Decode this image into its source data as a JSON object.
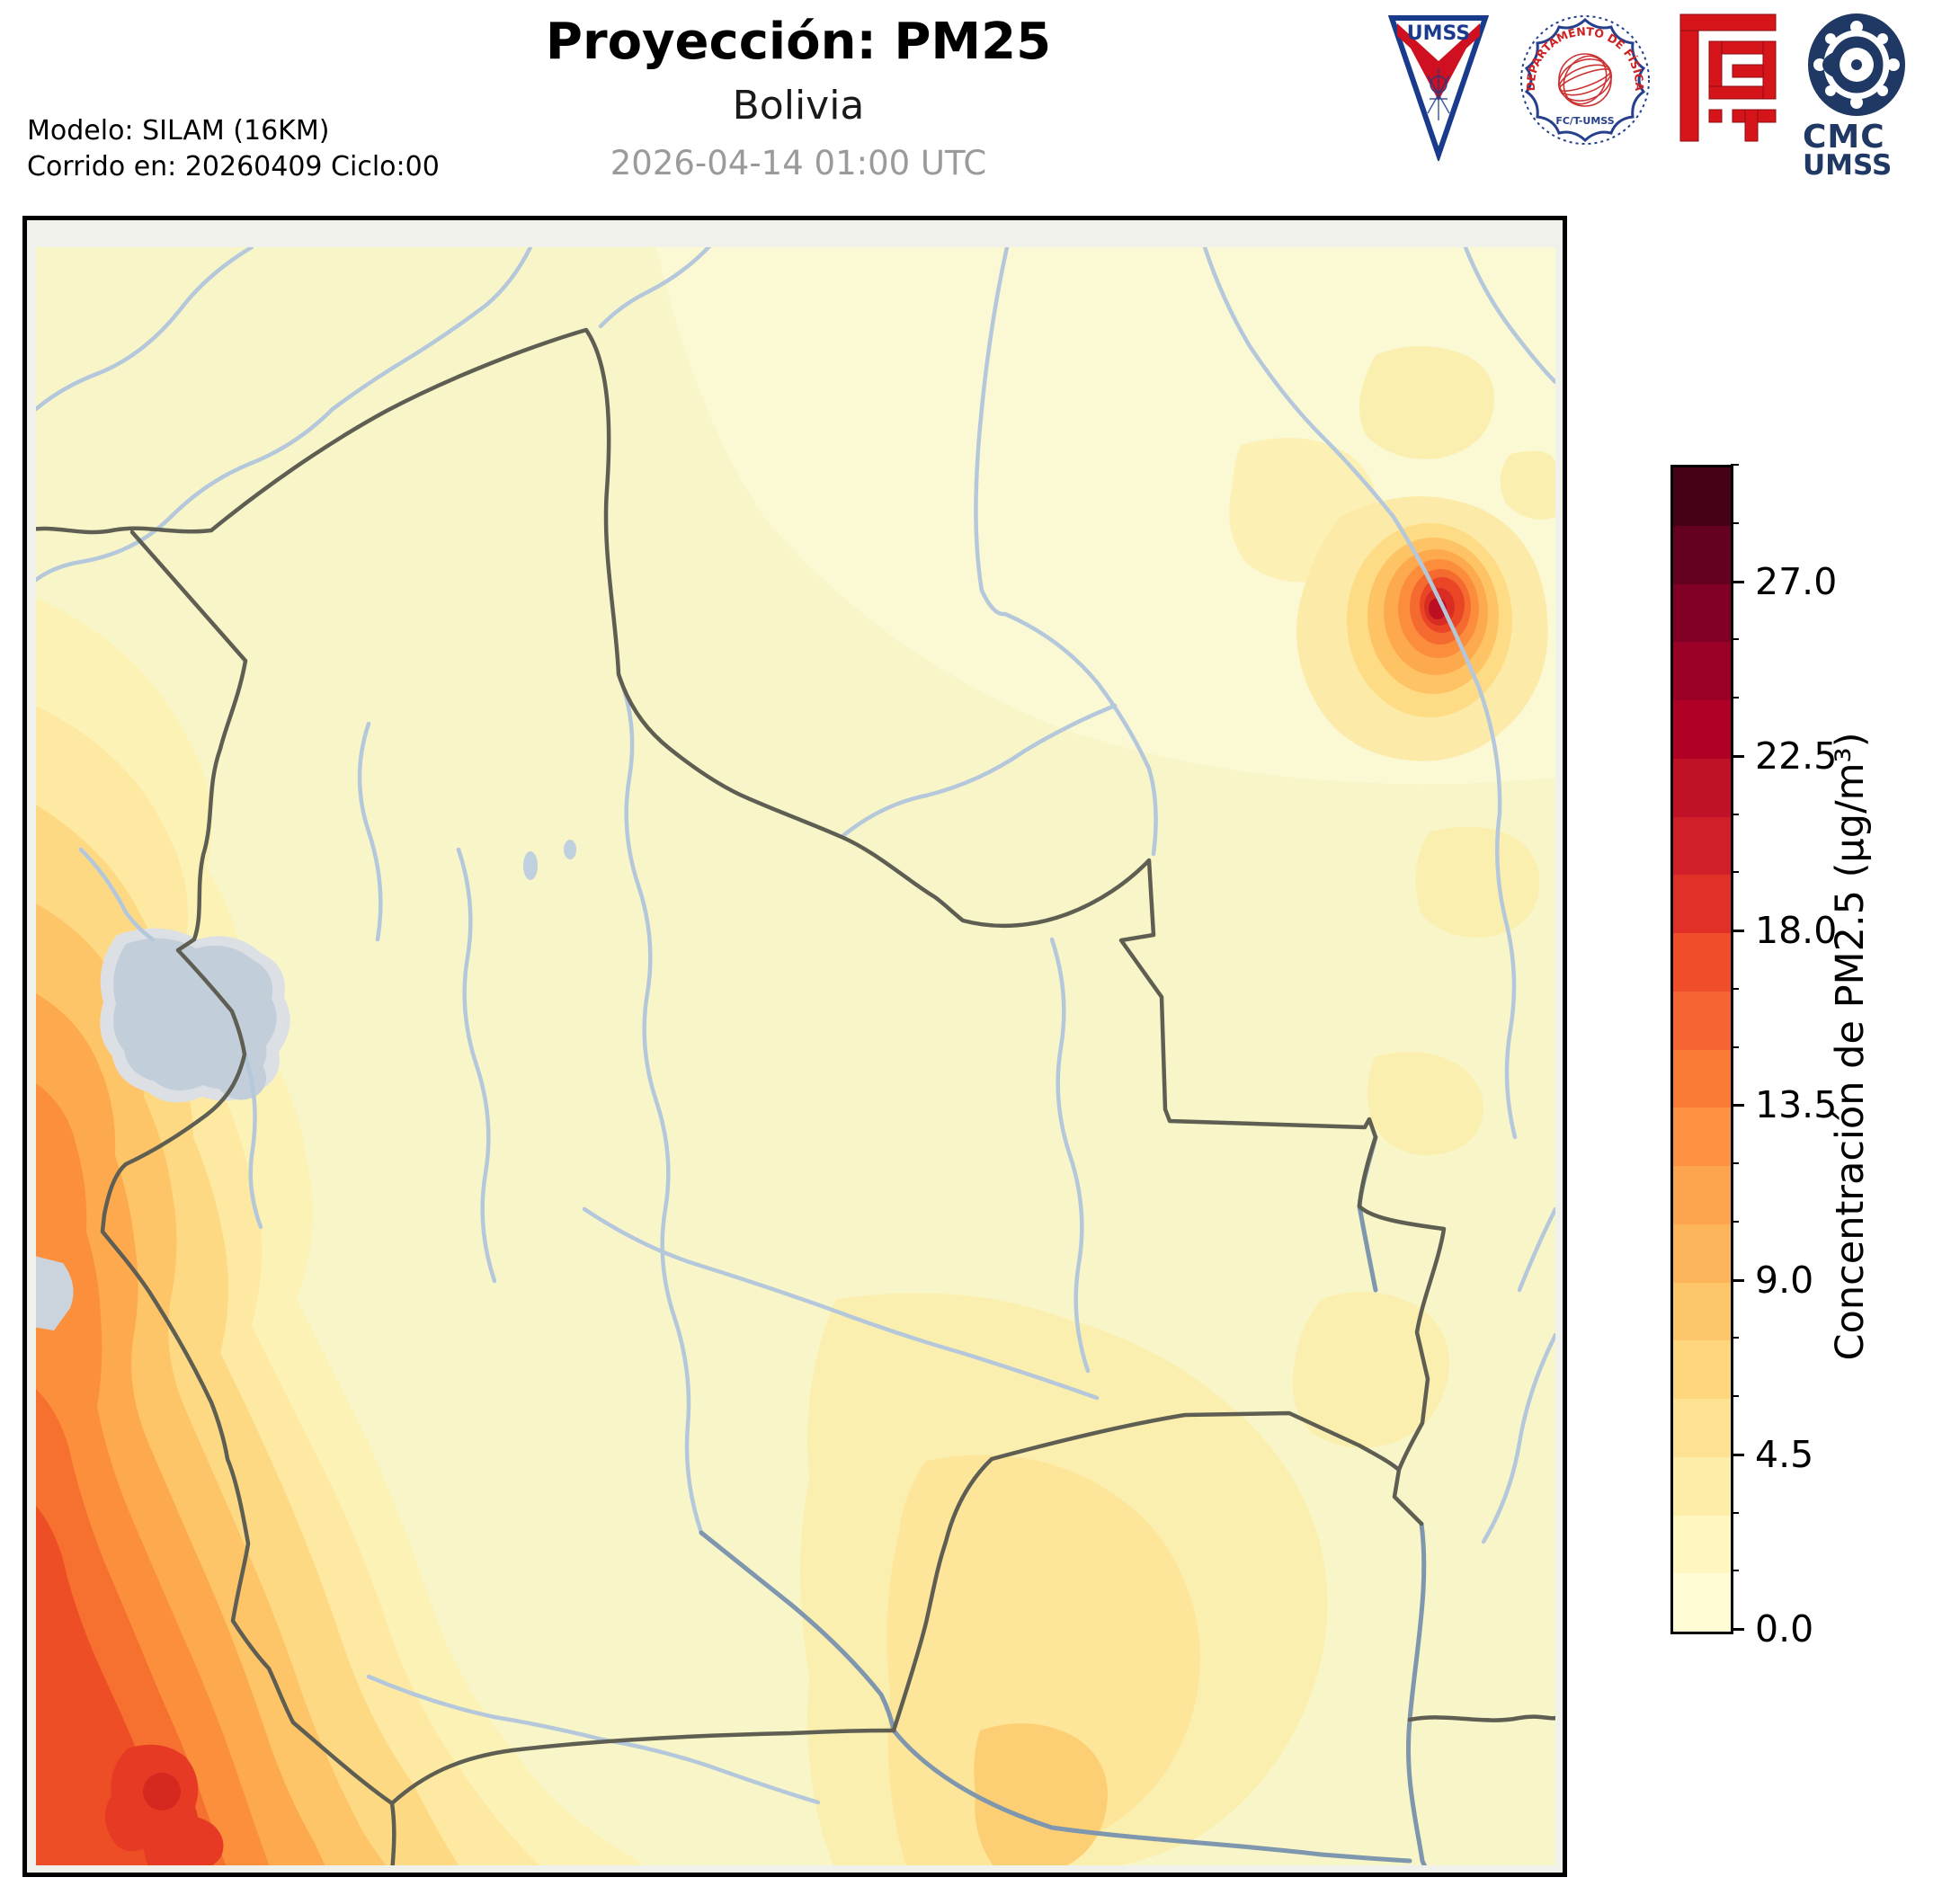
{
  "header": {
    "title": "Proyección: PM25",
    "subtitle": "Bolivia",
    "timestamp": "2026-04-14 01:00 UTC",
    "model_line1": "Modelo: SILAM (16KM)",
    "model_line2": "Corrido en: 20260409 Ciclo:00"
  },
  "logos": {
    "umss_pennant_label": "UMSS",
    "fisica_seal_label": "DEPARTAMENTO DE FÍSICA",
    "fisica_seal_sublabel": "FC/T-UMSS",
    "cmc_label1": "CMC",
    "cmc_label2": "UMSS"
  },
  "colorbar": {
    "label": "Concentración de PM2.5 (µg/m³)",
    "min": 0.0,
    "max": 30.0,
    "major_tick_values": [
      0.0,
      4.5,
      9.0,
      13.5,
      18.0,
      22.5,
      27.0
    ],
    "major_tick_labels": [
      "0.0",
      "4.5",
      "9.0",
      "13.5",
      "18.0",
      "22.5",
      "27.0"
    ],
    "minor_tick_step": 1.5,
    "segment_colors_bottom_to_top": [
      "#FFFCD6",
      "#FFF6C0",
      "#FEEDA9",
      "#FEE294",
      "#FED67E",
      "#FEC66B",
      "#FDB55B",
      "#FDA44E",
      "#FD9243",
      "#FA7B36",
      "#F66433",
      "#F04D2A",
      "#E03028",
      "#D01F28",
      "#C11126",
      "#B00026",
      "#9B0026",
      "#820026",
      "#640020",
      "#470117"
    ]
  },
  "map": {
    "margin_color": "#F1F1EC",
    "field_color": "#F8F6C8",
    "field_light_color": "#FAF9D4",
    "border_color": "#5E5E52",
    "river_color": "#B4C7DB",
    "river_dark_color": "#7E96AE",
    "lake_color": "#C2CEDA",
    "lake_halo_color": "#DCE0E4",
    "feature_names": {
      "country_borders": "country-borders",
      "rivers": "rivers",
      "lake": "lake-titicaca",
      "hotspot": "pm25-hotspot-northeast",
      "west_band": "andes-high-pm-band",
      "southwest_maximum": "southwest-pm-maximum"
    }
  }
}
